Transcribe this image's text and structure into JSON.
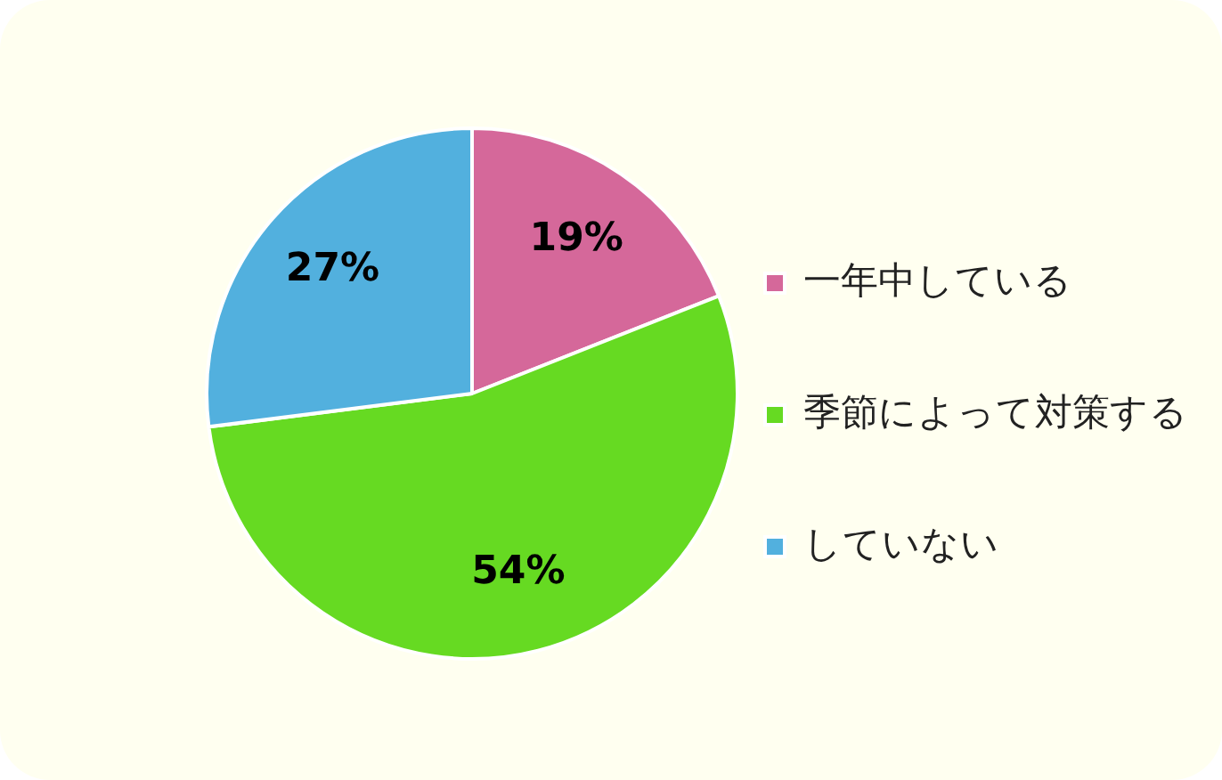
{
  "chart_data": {
    "type": "pie",
    "categories": [
      "一年中している",
      "季節によって対策する",
      "していない"
    ],
    "values": [
      19,
      54,
      27
    ],
    "value_labels": [
      "19%",
      "54%",
      "27%"
    ],
    "colors": [
      "#d5689a",
      "#66da22",
      "#52b0de"
    ],
    "legend": "right"
  }
}
